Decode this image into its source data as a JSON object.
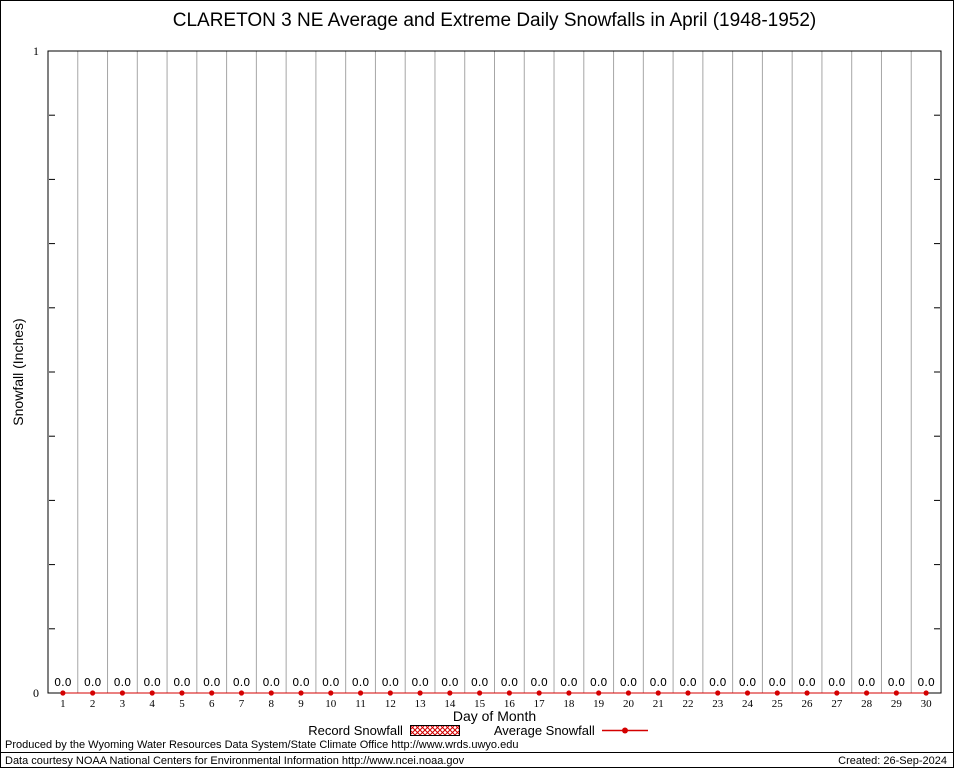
{
  "chart_data": {
    "type": "bar",
    "title": "CLARETON 3 NE Average and Extreme Daily Snowfalls in April (1948-1952)",
    "xlabel": "Day of Month",
    "ylabel": "Snowfall (Inches)",
    "ylim": [
      0,
      1
    ],
    "yticks": [
      {
        "value": 0,
        "label": "0"
      },
      {
        "value": 1,
        "label": "1"
      }
    ],
    "categories": [
      "1",
      "2",
      "3",
      "4",
      "5",
      "6",
      "7",
      "8",
      "9",
      "10",
      "11",
      "12",
      "13",
      "14",
      "15",
      "16",
      "17",
      "18",
      "19",
      "20",
      "21",
      "22",
      "23",
      "24",
      "25",
      "26",
      "27",
      "28",
      "29",
      "30"
    ],
    "series": [
      {
        "name": "Record Snowfall",
        "type": "bar",
        "values": [
          0.0,
          0.0,
          0.0,
          0.0,
          0.0,
          0.0,
          0.0,
          0.0,
          0.0,
          0.0,
          0.0,
          0.0,
          0.0,
          0.0,
          0.0,
          0.0,
          0.0,
          0.0,
          0.0,
          0.0,
          0.0,
          0.0,
          0.0,
          0.0,
          0.0,
          0.0,
          0.0,
          0.0,
          0.0,
          0.0
        ]
      },
      {
        "name": "Average Snowfall",
        "type": "line",
        "values": [
          0.0,
          0.0,
          0.0,
          0.0,
          0.0,
          0.0,
          0.0,
          0.0,
          0.0,
          0.0,
          0.0,
          0.0,
          0.0,
          0.0,
          0.0,
          0.0,
          0.0,
          0.0,
          0.0,
          0.0,
          0.0,
          0.0,
          0.0,
          0.0,
          0.0,
          0.0,
          0.0,
          0.0,
          0.0,
          0.0
        ]
      }
    ],
    "point_labels": [
      "0.0",
      "0.0",
      "0.0",
      "0.0",
      "0.0",
      "0.0",
      "0.0",
      "0.0",
      "0.0",
      "0.0",
      "0.0",
      "0.0",
      "0.0",
      "0.0",
      "0.0",
      "0.0",
      "0.0",
      "0.0",
      "0.0",
      "0.0",
      "0.0",
      "0.0",
      "0.0",
      "0.0",
      "0.0",
      "0.0",
      "0.0",
      "0.0",
      "0.0",
      "0.0"
    ],
    "legend_position": "bottom",
    "grid": "vertical"
  },
  "colors": {
    "record": "#d40000",
    "average": "#d40000",
    "grid": "#a6a6a6",
    "axis": "#000000"
  },
  "footer": {
    "produced_by": "Produced by the Wyoming Water Resources Data System/State Climate Office http://www.wrds.uwyo.edu",
    "data_courtesy": "Data courtesy NOAA National Centers for Environmental Information http://www.ncei.noaa.gov",
    "created": "Created: 26-Sep-2024"
  }
}
